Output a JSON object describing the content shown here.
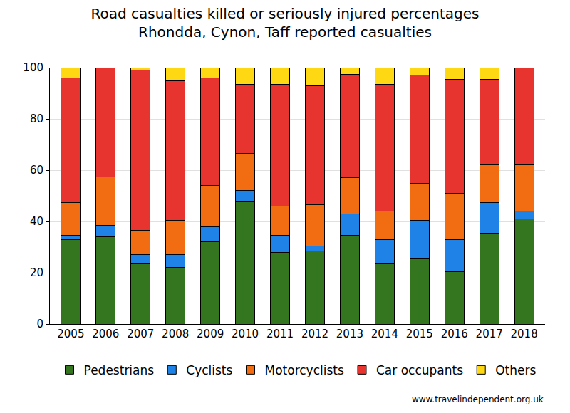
{
  "chart_data": {
    "type": "bar",
    "title": "Road casualties killed or seriously injured percentages",
    "subtitle": "Rhondda, Cynon, Taff reported casualties",
    "categories": [
      "2005",
      "2006",
      "2007",
      "2008",
      "2009",
      "2010",
      "2011",
      "2012",
      "2013",
      "2014",
      "2015",
      "2016",
      "2017",
      "2018"
    ],
    "series": [
      {
        "name": "Pedestrians",
        "color": "#33761f",
        "values": [
          33,
          34,
          23.5,
          22,
          32,
          48,
          28,
          28.5,
          34.5,
          23.5,
          25.5,
          20.5,
          35.5,
          41
        ]
      },
      {
        "name": "Cyclists",
        "color": "#1e82e6",
        "values": [
          1.5,
          4.5,
          3.5,
          5,
          6,
          4,
          6.5,
          2,
          8.5,
          9.5,
          15,
          12.5,
          12,
          3
        ]
      },
      {
        "name": "Motorcyclists",
        "color": "#f26c12",
        "values": [
          13,
          19,
          9.5,
          13.5,
          16,
          14.5,
          11.5,
          16,
          14,
          11,
          14.5,
          18,
          14.5,
          18
        ]
      },
      {
        "name": "Car occupants",
        "color": "#e8342e",
        "values": [
          48.5,
          42.5,
          62.5,
          54.5,
          42,
          27,
          47.5,
          46.5,
          40.5,
          49.5,
          42,
          44.5,
          33.5,
          38
        ]
      },
      {
        "name": "Others",
        "color": "#ffd814",
        "values": [
          4,
          0,
          1,
          5,
          4,
          6.5,
          6.5,
          7,
          2.5,
          6.5,
          3,
          4.5,
          4.5,
          0
        ]
      }
    ],
    "ylim": [
      0,
      100
    ],
    "yticks": [
      0,
      20,
      40,
      60,
      80,
      100
    ],
    "stacked": true,
    "grid": true,
    "legend": "bottom",
    "annotations": [
      "www.travelindependent.org.uk"
    ]
  }
}
